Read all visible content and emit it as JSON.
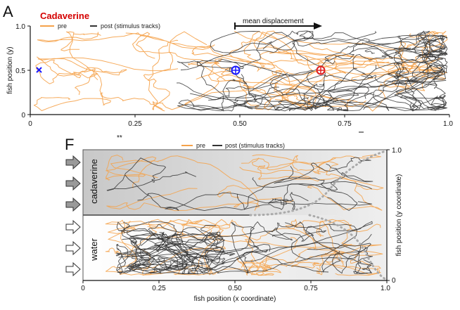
{
  "chart_data": [
    {
      "type": "line",
      "panel_letter": "A",
      "title": "Cadaverine",
      "title_color": "#d40000",
      "xlim": [
        0,
        1
      ],
      "ylim": [
        0,
        1
      ],
      "ylabel": "fish position (y)",
      "xlabel": "",
      "xticks": [
        "0",
        "0.25",
        "0.50",
        "0.75",
        "1.0"
      ],
      "yticks": [
        "0",
        "0.5",
        "1.0"
      ],
      "series": [
        {
          "name": "pre",
          "color": "#f5a24a"
        },
        {
          "name": "post  (stimulus tracks)",
          "color": "#333333"
        }
      ],
      "annotations": {
        "mean_displacement": "mean displacement",
        "stimulus_marker": {
          "x": 0.02,
          "y": 0.5,
          "color": "#1a1aff",
          "shape": "x"
        },
        "centroid_pre": {
          "x": 0.49,
          "y": 0.5,
          "color": "#1a1aff"
        },
        "centroid_post": {
          "x": 0.69,
          "y": 0.5,
          "color": "#e02020"
        }
      },
      "significance": "**"
    },
    {
      "type": "line",
      "panel_letter": "F",
      "xlim": [
        0,
        1
      ],
      "ylim": [
        0,
        1
      ],
      "xlabel": "fish position (x coordinate)",
      "ylabel": "fish position (y coordinate)",
      "xticks": [
        "0",
        "0.25",
        "0.50",
        "0.75",
        "1.0"
      ],
      "yticks": [
        "0",
        "1.0"
      ],
      "series": [
        {
          "name": "pre",
          "color": "#f5a24a"
        },
        {
          "name": "post  (stimulus tracks)",
          "color": "#333333"
        }
      ],
      "zones": [
        "cadaverine",
        "water"
      ],
      "zone_color": "#d9d9d9"
    }
  ]
}
